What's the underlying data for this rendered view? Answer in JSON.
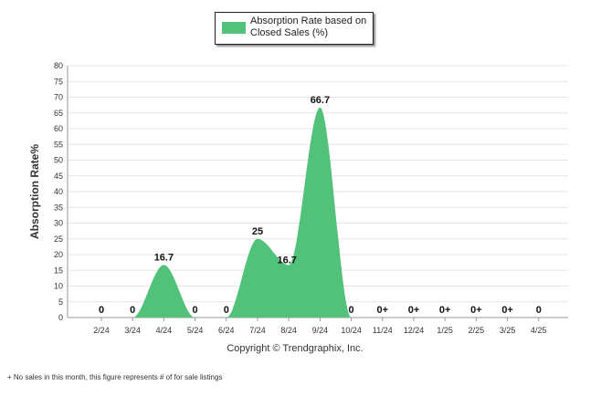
{
  "legend": {
    "label": "Absorption Rate based on Closed Sales (%)"
  },
  "copyright": "Copyright © Trendgraphix, Inc.",
  "footnote": "+  No sales in this month, this figure represents # of for sale listings",
  "colors": {
    "series": "#52c27a",
    "grid": "#e6e6e6",
    "axis": "#999999",
    "text": "#333333"
  },
  "chart_data": {
    "type": "area",
    "title": "",
    "xlabel": "",
    "ylabel": "Absorption Rate%",
    "categories": [
      "2/24",
      "3/24",
      "4/24",
      "5/24",
      "6/24",
      "7/24",
      "8/24",
      "9/24",
      "10/24",
      "11/24",
      "12/24",
      "1/25",
      "2/25",
      "3/25",
      "4/25"
    ],
    "series": [
      {
        "name": "Absorption Rate based on Closed Sales (%)",
        "values": [
          0,
          0,
          16.7,
          0,
          0,
          25,
          16.7,
          66.7,
          0,
          0,
          0,
          0,
          0,
          0,
          0
        ],
        "data_labels": [
          "0",
          "0",
          "16.7",
          "0",
          "0",
          "25",
          "16.7",
          "66.7",
          "0",
          "0+",
          "0+",
          "0+",
          "0+",
          "0+",
          "0"
        ]
      }
    ],
    "ylim": [
      0,
      80
    ],
    "yticks": [
      0,
      5,
      10,
      15,
      20,
      25,
      30,
      35,
      40,
      45,
      50,
      55,
      60,
      65,
      70,
      75,
      80
    ],
    "grid": true,
    "legend_position": "top-center"
  }
}
